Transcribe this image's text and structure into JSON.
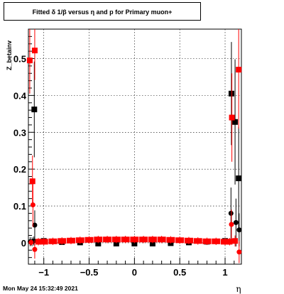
{
  "title": "Fitted δ 1/β versus η and p for Primary muon+",
  "footer": "Mon May 24 15:32:49 2021",
  "chart_data": {
    "type": "scatter",
    "title": "Fitted δ 1/β versus η and p for Primary muon+",
    "xlabel": "η",
    "ylabel": "Z_betainv",
    "xlim": [
      -1.17,
      1.18
    ],
    "ylim": [
      -0.058,
      0.58
    ],
    "xticks": [
      -1,
      -0.5,
      0,
      0.5,
      1
    ],
    "xtick_labels": [
      "−1",
      "−0.5",
      "0",
      "0.5",
      "1"
    ],
    "yticks": [
      0,
      0.1,
      0.2,
      0.3,
      0.4,
      0.5
    ],
    "ytick_labels": [
      "0",
      "0.1",
      "0.2",
      "0.3",
      "0.4",
      "0.5"
    ],
    "grid": true,
    "colors": {
      "black_series": "#000000",
      "red_series": "#ff0000"
    },
    "series": [
      {
        "color": "#000000",
        "points": [
          {
            "x": -1.15,
            "y": 0.003,
            "err": 0.012,
            "marker": "circle"
          },
          {
            "x": -1.13,
            "y": 0.003,
            "err": 0.012,
            "marker": "circle"
          },
          {
            "x": -1.11,
            "y": 0.005,
            "err": 0.012,
            "marker": "circle"
          },
          {
            "x": -1.105,
            "y": 0.362,
            "err": 0.13,
            "marker": "square"
          },
          {
            "x": -1.1,
            "y": 0.048,
            "err": 0.04,
            "marker": "circle"
          },
          {
            "x": -1.0,
            "y": 0.005,
            "err": 0.004,
            "marker": "circle"
          },
          {
            "x": -0.8,
            "y": 0.002,
            "err": 0.004,
            "marker": "circle"
          },
          {
            "x": -0.6,
            "y": 0.001,
            "err": 0.004,
            "marker": "circle"
          },
          {
            "x": -0.4,
            "y": -0.002,
            "err": 0.004,
            "marker": "circle"
          },
          {
            "x": -0.2,
            "y": -0.002,
            "err": 0.004,
            "marker": "circle"
          },
          {
            "x": 0.0,
            "y": -0.002,
            "err": 0.004,
            "marker": "circle"
          },
          {
            "x": 0.2,
            "y": -0.002,
            "err": 0.004,
            "marker": "circle"
          },
          {
            "x": 0.4,
            "y": -0.001,
            "err": 0.004,
            "marker": "circle"
          },
          {
            "x": 0.6,
            "y": 0.001,
            "err": 0.004,
            "marker": "circle"
          },
          {
            "x": 0.8,
            "y": 0.003,
            "err": 0.004,
            "marker": "circle"
          },
          {
            "x": 1.0,
            "y": 0.005,
            "err": 0.004,
            "marker": "circle"
          },
          {
            "x": 1.065,
            "y": 0.08,
            "err": 0.07,
            "marker": "circle"
          },
          {
            "x": 1.07,
            "y": 0.405,
            "err": 0.14,
            "marker": "square"
          },
          {
            "x": 1.11,
            "y": 0.328,
            "err": 0.17,
            "marker": "square"
          },
          {
            "x": 1.12,
            "y": 0.055,
            "err": 0.065,
            "marker": "circle"
          },
          {
            "x": 1.15,
            "y": 0.175,
            "err": 0.14,
            "marker": "square"
          },
          {
            "x": 1.155,
            "y": 0.035,
            "err": 0.045,
            "marker": "circle"
          }
        ]
      },
      {
        "color": "#ff0000",
        "points": [
          {
            "x": -1.155,
            "y": 0.495,
            "err": 0.09,
            "marker": "square"
          },
          {
            "x": -1.14,
            "y": 0.001,
            "err": 0.008,
            "marker": "circle"
          },
          {
            "x": -1.125,
            "y": 0.167,
            "err": 0.07,
            "marker": "square"
          },
          {
            "x": -1.12,
            "y": 0.103,
            "err": 0.06,
            "marker": "circle"
          },
          {
            "x": -1.1,
            "y": 0.522,
            "err": 0.08,
            "marker": "square"
          },
          {
            "x": -1.1,
            "y": -0.018,
            "err": 0.025,
            "marker": "circle"
          },
          {
            "x": -1.06,
            "y": 0.003,
            "err": 0.01,
            "marker": "square"
          },
          {
            "x": -1.0,
            "y": 0.003,
            "err": 0.01,
            "marker": "square"
          },
          {
            "x": -0.9,
            "y": 0.004,
            "err": 0.01,
            "marker": "square"
          },
          {
            "x": -0.8,
            "y": 0.005,
            "err": 0.01,
            "marker": "square"
          },
          {
            "x": -0.7,
            "y": 0.006,
            "err": 0.01,
            "marker": "square"
          },
          {
            "x": -0.6,
            "y": 0.007,
            "err": 0.01,
            "marker": "square"
          },
          {
            "x": -0.5,
            "y": 0.008,
            "err": 0.01,
            "marker": "square"
          },
          {
            "x": -0.4,
            "y": 0.009,
            "err": 0.01,
            "marker": "square"
          },
          {
            "x": -0.3,
            "y": 0.009,
            "err": 0.01,
            "marker": "square"
          },
          {
            "x": -0.2,
            "y": 0.009,
            "err": 0.01,
            "marker": "square"
          },
          {
            "x": -0.1,
            "y": 0.009,
            "err": 0.01,
            "marker": "square"
          },
          {
            "x": 0.0,
            "y": 0.009,
            "err": 0.01,
            "marker": "square"
          },
          {
            "x": 0.1,
            "y": 0.009,
            "err": 0.01,
            "marker": "square"
          },
          {
            "x": 0.2,
            "y": 0.009,
            "err": 0.01,
            "marker": "square"
          },
          {
            "x": 0.3,
            "y": 0.009,
            "err": 0.01,
            "marker": "square"
          },
          {
            "x": 0.4,
            "y": 0.008,
            "err": 0.01,
            "marker": "square"
          },
          {
            "x": 0.5,
            "y": 0.007,
            "err": 0.01,
            "marker": "square"
          },
          {
            "x": 0.6,
            "y": 0.006,
            "err": 0.01,
            "marker": "square"
          },
          {
            "x": 0.7,
            "y": 0.005,
            "err": 0.01,
            "marker": "square"
          },
          {
            "x": 0.8,
            "y": 0.004,
            "err": 0.01,
            "marker": "square"
          },
          {
            "x": 0.9,
            "y": 0.004,
            "err": 0.01,
            "marker": "square"
          },
          {
            "x": 1.0,
            "y": 0.003,
            "err": 0.01,
            "marker": "square"
          },
          {
            "x": 1.05,
            "y": 0.003,
            "err": 0.01,
            "marker": "square"
          },
          {
            "x": 1.07,
            "y": 0.05,
            "err": 0.04,
            "marker": "circle"
          },
          {
            "x": 1.075,
            "y": 0.34,
            "err": 0.12,
            "marker": "square"
          },
          {
            "x": 1.11,
            "y": 0.005,
            "err": 0.015,
            "marker": "square"
          },
          {
            "x": 1.15,
            "y": 0.47,
            "err": 0.16,
            "marker": "square"
          },
          {
            "x": 1.155,
            "y": -0.025,
            "err": 0.03,
            "marker": "circle"
          }
        ]
      }
    ]
  }
}
